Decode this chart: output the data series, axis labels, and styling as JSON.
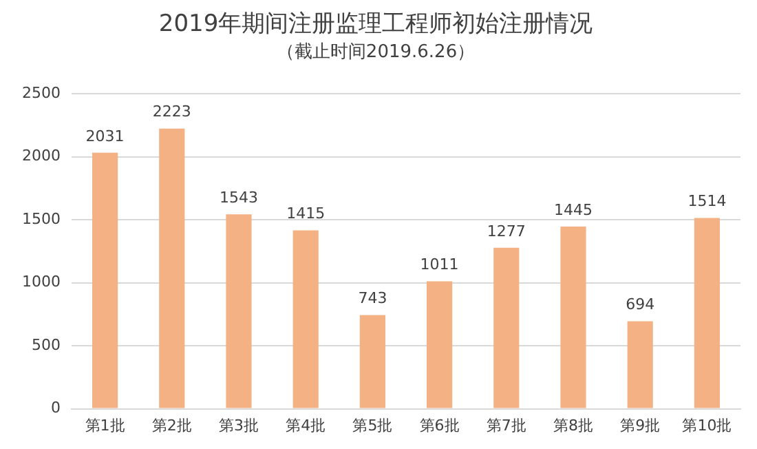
{
  "chart_data": {
    "type": "bar",
    "title": "2019年期间注册监理工程师初始注册情况",
    "subtitle": "（截止时间2019.6.26）",
    "categories": [
      "第1批",
      "第2批",
      "第3批",
      "第4批",
      "第5批",
      "第6批",
      "第7批",
      "第8批",
      "第9批",
      "第10批"
    ],
    "values": [
      2031,
      2223,
      1543,
      1415,
      743,
      1011,
      1277,
      1445,
      694,
      1514
    ],
    "color": "#f4b183",
    "ylim": [
      0,
      2500
    ],
    "yticks": [
      0,
      500,
      1000,
      1500,
      2000,
      2500
    ],
    "grid": "y",
    "data_labels": true
  }
}
